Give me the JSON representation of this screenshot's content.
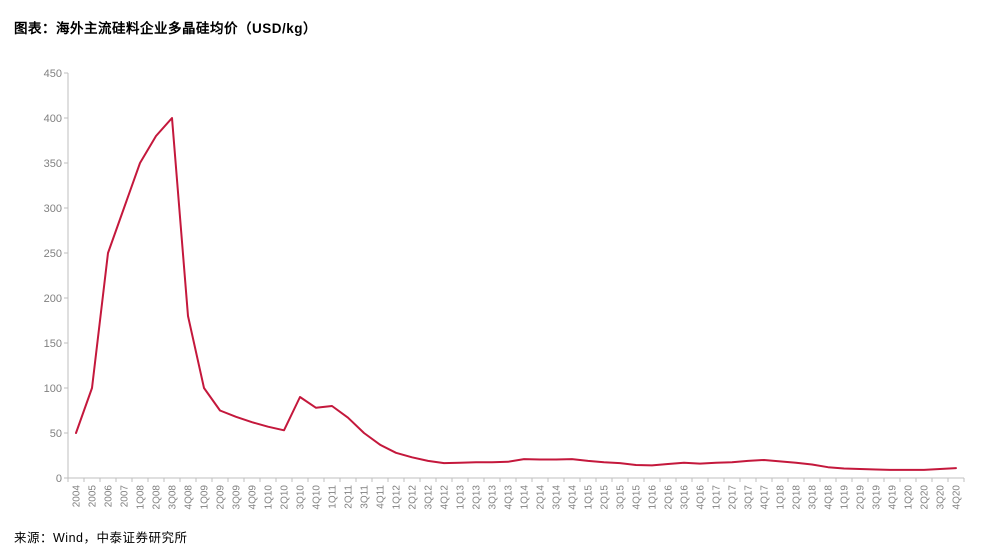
{
  "header": {
    "title": "图表：海外主流硅料企业多晶硅均价（USD/kg）"
  },
  "footer": {
    "source": "来源：Wind，中泰证券研究所"
  },
  "chart_data": {
    "type": "line",
    "title": "海外主流硅料企业多晶硅均价（USD/kg）",
    "xlabel": "",
    "ylabel": "",
    "ylim": [
      0,
      450
    ],
    "ytick_step": 50,
    "grid": false,
    "legend_position": "none",
    "categories": [
      "2004",
      "2005",
      "2006",
      "2007",
      "1Q08",
      "2Q08",
      "3Q08",
      "4Q08",
      "1Q09",
      "2Q09",
      "3Q09",
      "4Q09",
      "1Q10",
      "2Q10",
      "3Q10",
      "4Q10",
      "1Q11",
      "2Q11",
      "3Q11",
      "4Q11",
      "1Q12",
      "2Q12",
      "3Q12",
      "4Q12",
      "1Q13",
      "2Q13",
      "3Q13",
      "4Q13",
      "1Q14",
      "2Q14",
      "3Q14",
      "4Q14",
      "1Q15",
      "2Q15",
      "3Q15",
      "4Q15",
      "1Q16",
      "2Q16",
      "3Q16",
      "4Q16",
      "1Q17",
      "2Q17",
      "3Q17",
      "4Q17",
      "1Q18",
      "2Q18",
      "3Q18",
      "4Q18",
      "1Q19",
      "2Q19",
      "3Q19",
      "4Q19",
      "1Q20",
      "2Q20",
      "3Q20",
      "4Q20"
    ],
    "series": [
      {
        "name": "多晶硅均价",
        "values": [
          50,
          100,
          250,
          300,
          350,
          380,
          400,
          180,
          100,
          75,
          68,
          62,
          57,
          53,
          90,
          78,
          80,
          67,
          50,
          37,
          28,
          23,
          19,
          16.5,
          17,
          17.5,
          17.5,
          18,
          21,
          20.5,
          20.5,
          21,
          19,
          17.5,
          16.5,
          14.5,
          14,
          15.5,
          17,
          16,
          17,
          17.5,
          19,
          20,
          18.5,
          17,
          15,
          12,
          10.5,
          10,
          9.5,
          9,
          9,
          9,
          10,
          11
        ]
      }
    ],
    "colors": {
      "line": "#C4183C",
      "axis": "#BFBFBF",
      "tick": "#BFBFBF",
      "tick_label": "#808080"
    }
  }
}
